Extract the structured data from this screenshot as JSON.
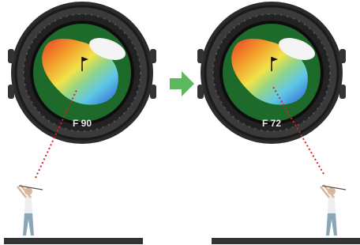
{
  "watches": [
    {
      "distance": "F 90"
    },
    {
      "distance": "F 72"
    }
  ]
}
